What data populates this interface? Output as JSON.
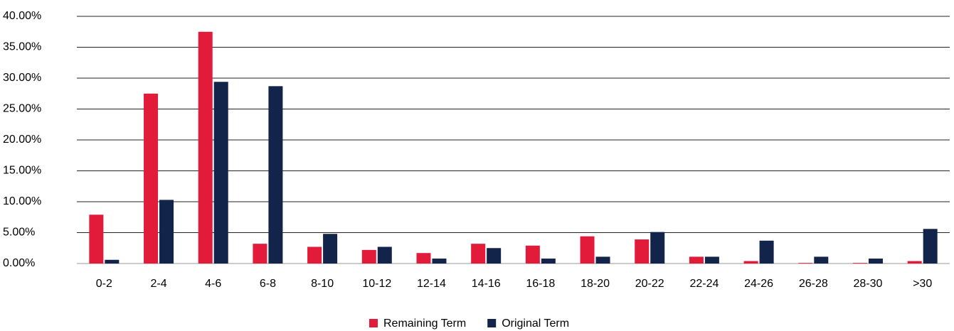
{
  "chart_data": {
    "type": "bar",
    "categories": [
      "0-2",
      "2-4",
      "4-6",
      "6-8",
      "8-10",
      "10-12",
      "12-14",
      "14-16",
      "16-18",
      "18-20",
      "20-22",
      "22-24",
      "24-26",
      "26-28",
      "28-30",
      ">30"
    ],
    "series": [
      {
        "name": "Remaining Term",
        "color": "#e31b3b",
        "values": [
          7.9,
          27.5,
          37.5,
          3.2,
          2.7,
          2.2,
          1.7,
          3.2,
          2.9,
          4.4,
          3.9,
          1.1,
          0.4,
          0.1,
          0.1,
          0.4
        ]
      },
      {
        "name": "Original Term",
        "color": "#13244a",
        "values": [
          0.6,
          10.3,
          29.4,
          28.7,
          4.8,
          2.7,
          0.8,
          2.5,
          0.8,
          1.1,
          5.1,
          1.1,
          3.7,
          1.1,
          0.8,
          5.6
        ]
      }
    ],
    "ylim": [
      0,
      40
    ],
    "yticks": [
      {
        "value": 0,
        "label": "0.00%"
      },
      {
        "value": 5,
        "label": "5.00%"
      },
      {
        "value": 10,
        "label": "10.00%"
      },
      {
        "value": 15,
        "label": "15.00%"
      },
      {
        "value": 20,
        "label": "20.00%"
      },
      {
        "value": 25,
        "label": "25.00%"
      },
      {
        "value": 30,
        "label": "30.00%"
      },
      {
        "value": 35,
        "label": "35.00%"
      },
      {
        "value": 40,
        "label": "40.00%"
      }
    ],
    "grid": true,
    "legend": "bottom"
  }
}
